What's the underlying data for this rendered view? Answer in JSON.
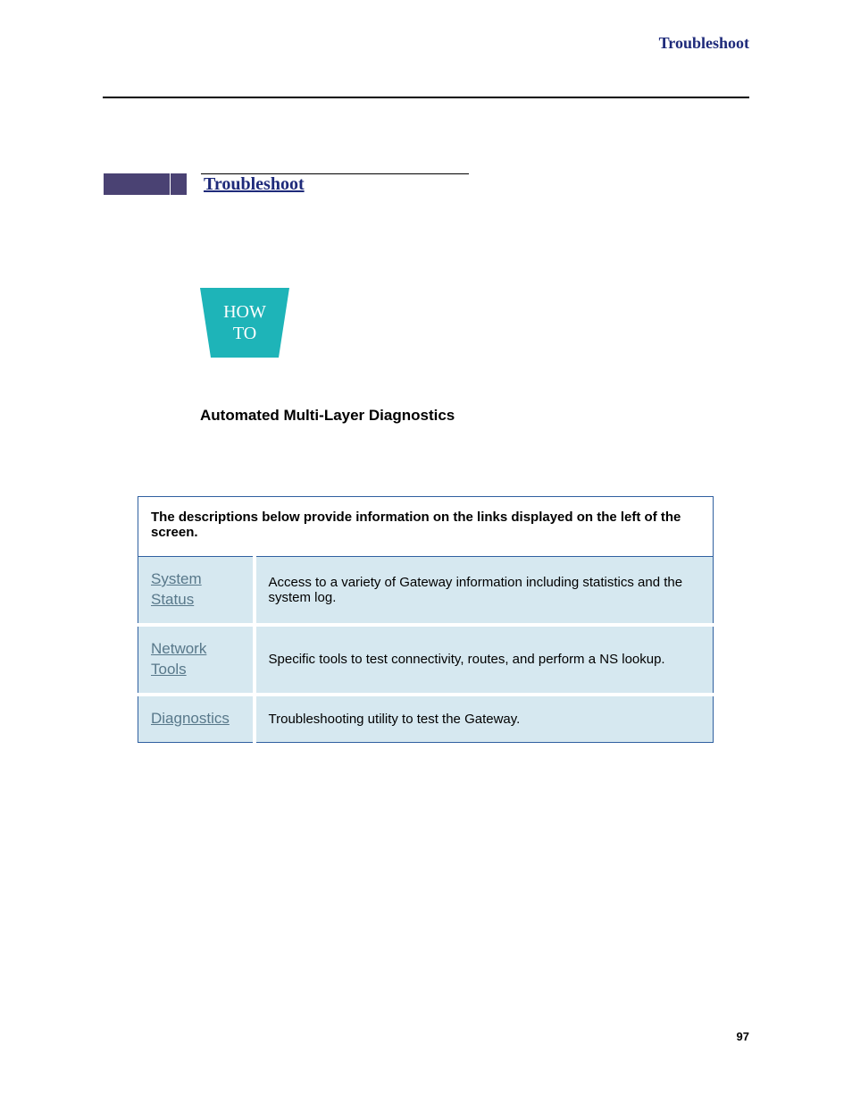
{
  "header": {
    "title": "Troubleshoot"
  },
  "section": {
    "title": "Troubleshoot"
  },
  "howto": {
    "line1": "HOW",
    "line2": "TO",
    "badge_color": "#1eb4b8"
  },
  "subtitle": "Automated Multi-Layer Diagnostics",
  "table": {
    "header_text": "The descriptions below provide information on the links displayed on the left of the screen.",
    "border_color": "#3060a0",
    "row_bg": "#d6e8f0",
    "link_color": "#58788a",
    "rows": [
      {
        "link": "System Status",
        "desc": "Access to a variety of Gateway information including statistics and the system log."
      },
      {
        "link": "Network Tools",
        "desc": "Specific tools to test connectivity, routes, and perform a NS lookup."
      },
      {
        "link": "Diagnostics",
        "desc": "Troubleshooting utility to test the Gateway."
      }
    ]
  },
  "page_number": "97",
  "colors": {
    "title_color": "#1e2a7a",
    "purple_bar": "#4a4273"
  }
}
